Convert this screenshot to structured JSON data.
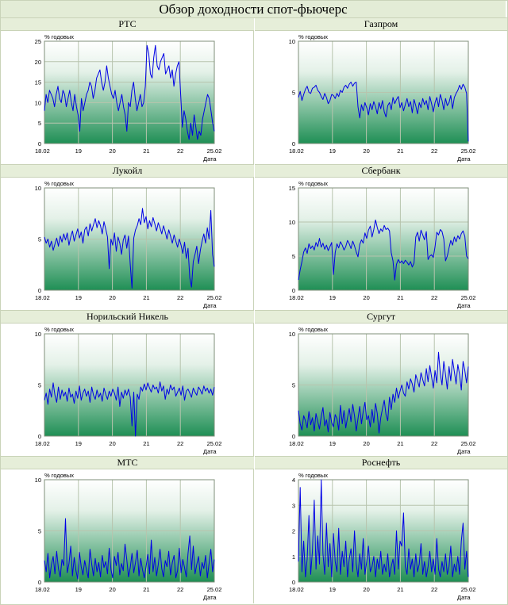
{
  "title": "Обзор доходности спот-фьючерс",
  "colors": {
    "line": "#0000e6",
    "plot_top": "#ffffff",
    "plot_bottom": "#1f8f55",
    "header_bg": "#e6eed9",
    "border": "#c9d3b8",
    "grid": "#b7c4ad"
  },
  "chart_data": [
    {
      "type": "line",
      "title": "РТС",
      "ylabel": "% годовых",
      "xlabel": "Дата",
      "ylim": [
        0,
        25
      ],
      "yticks": [
        "0",
        "5",
        "10",
        "15",
        "20",
        "25"
      ],
      "xticks": [
        "18.02",
        "19",
        "20",
        "21",
        "22",
        "25.02"
      ],
      "grid": true,
      "series": [
        {
          "values": [
            8,
            12,
            10,
            13,
            12,
            11,
            9,
            12,
            14,
            11,
            10,
            13,
            12,
            9,
            11,
            13,
            10,
            8,
            12,
            9,
            7,
            3,
            11,
            8,
            10,
            12,
            13,
            15,
            14,
            11,
            13,
            16,
            17,
            18,
            15,
            13,
            15,
            19,
            16,
            14,
            12,
            11,
            13,
            10,
            8,
            10,
            12,
            9,
            7,
            3,
            10,
            9,
            13,
            15,
            11,
            8,
            10,
            12,
            9,
            10,
            14,
            24,
            22,
            17,
            16,
            21,
            24,
            19,
            18,
            20,
            21,
            22,
            17,
            18,
            19,
            16,
            18,
            14,
            17,
            19,
            20,
            12,
            4,
            8,
            6,
            3,
            1,
            5,
            2,
            7,
            4,
            1,
            3,
            2,
            6,
            8,
            10,
            12,
            11,
            8,
            5,
            3
          ]
        }
      ]
    },
    {
      "type": "line",
      "title": "Газпром",
      "ylabel": "% годовых",
      "xlabel": "Дата",
      "ylim": [
        0,
        10
      ],
      "yticks": [
        "0",
        "5",
        "10"
      ],
      "xticks": [
        "18.02",
        "19",
        "20",
        "21",
        "22",
        "25.02"
      ],
      "grid": true,
      "series": [
        {
          "values": [
            4.5,
            5.1,
            4.2,
            4.8,
            5.3,
            5.6,
            5.0,
            4.9,
            5.4,
            5.5,
            5.7,
            5.2,
            5.0,
            4.6,
            4.3,
            4.9,
            4.5,
            3.9,
            4.2,
            4.8,
            4.7,
            4.4,
            4.9,
            4.6,
            5.2,
            5.0,
            5.5,
            5.7,
            5.4,
            5.8,
            6.0,
            5.6,
            5.9,
            6.0,
            3.6,
            2.5,
            3.8,
            3.2,
            4.0,
            3.5,
            2.8,
            3.9,
            3.3,
            4.1,
            3.6,
            2.9,
            4.0,
            3.4,
            4.2,
            3.1,
            2.6,
            3.7,
            4.0,
            3.3,
            4.5,
            3.9,
            4.3,
            4.6,
            3.5,
            4.0,
            3.2,
            3.8,
            4.4,
            3.6,
            4.1,
            3.0,
            4.3,
            3.7,
            2.9,
            4.0,
            3.5,
            4.4,
            3.8,
            4.2,
            3.3,
            4.6,
            3.9,
            3.1,
            4.0,
            4.5,
            3.6,
            4.8,
            4.2,
            3.3,
            4.4,
            3.7,
            4.0,
            4.7,
            3.4,
            4.5,
            4.9,
            5.2,
            5.7,
            5.3,
            5.8,
            5.5,
            4.9,
            0.2
          ]
        }
      ]
    },
    {
      "type": "line",
      "title": "Лукойл",
      "ylabel": "% годовых",
      "xlabel": "Дата",
      "ylim": [
        0,
        10
      ],
      "yticks": [
        "0",
        "5",
        "10"
      ],
      "xticks": [
        "18.02",
        "19",
        "20",
        "21",
        "22",
        "25.02"
      ],
      "grid": true,
      "series": [
        {
          "values": [
            5.2,
            4.6,
            5.0,
            4.2,
            4.8,
            3.9,
            4.5,
            5.1,
            4.3,
            5.3,
            4.7,
            5.5,
            4.9,
            5.6,
            4.4,
            5.2,
            5.8,
            4.8,
            5.4,
            6.0,
            5.1,
            5.7,
            4.6,
            5.9,
            6.2,
            5.3,
            6.5,
            5.8,
            6.4,
            7.0,
            6.1,
            6.8,
            6.3,
            5.5,
            6.7,
            6.0,
            5.2,
            2.1,
            5.0,
            4.4,
            5.6,
            3.8,
            5.2,
            4.6,
            3.5,
            4.9,
            5.4,
            4.1,
            5.3,
            2.5,
            0.2,
            5.1,
            5.9,
            6.3,
            7.0,
            6.4,
            8.0,
            6.6,
            7.2,
            6.0,
            6.8,
            6.2,
            7.1,
            6.5,
            5.8,
            6.6,
            6.1,
            5.5,
            6.3,
            5.7,
            5.0,
            5.9,
            5.3,
            4.6,
            5.4,
            4.8,
            4.2,
            5.0,
            4.4,
            3.6,
            4.7,
            3.1,
            4.1,
            1.2,
            0.3,
            2.8,
            3.5,
            4.3,
            2.6,
            3.9,
            4.8,
            5.5,
            4.6,
            6.1,
            5.0,
            7.8,
            3.5,
            2.3
          ]
        }
      ]
    },
    {
      "type": "line",
      "title": "Сбербанк",
      "ylabel": "% годовых",
      "xlabel": "Дата",
      "ylim": [
        0,
        15
      ],
      "yticks": [
        "0",
        "5",
        "10",
        "15"
      ],
      "xticks": [
        "18.02",
        "19",
        "20",
        "21",
        "22",
        "25.02"
      ],
      "grid": true,
      "series": [
        {
          "values": [
            1.5,
            3.0,
            4.2,
            5.6,
            6.2,
            5.4,
            6.8,
            6.1,
            6.5,
            5.9,
            7.0,
            6.4,
            7.6,
            6.3,
            6.9,
            6.0,
            6.6,
            5.8,
            6.4,
            7.0,
            2.3,
            5.5,
            6.8,
            6.2,
            7.1,
            6.6,
            5.9,
            6.4,
            7.3,
            6.8,
            6.1,
            7.2,
            6.5,
            5.6,
            4.9,
            6.7,
            7.4,
            6.9,
            8.4,
            7.6,
            8.8,
            9.4,
            7.8,
            8.9,
            10.3,
            9.2,
            8.3,
            9.0,
            8.6,
            9.5,
            8.9,
            9.1,
            8.7,
            5.5,
            4.3,
            1.5,
            3.8,
            4.5,
            4.0,
            4.3,
            3.9,
            4.4,
            4.1,
            3.7,
            4.2,
            3.4,
            4.0,
            7.8,
            8.5,
            7.2,
            8.8,
            8.1,
            7.4,
            8.6,
            4.5,
            5.0,
            5.2,
            4.8,
            6.4,
            8.5,
            8.1,
            8.9,
            8.6,
            7.5,
            4.3,
            5.0,
            6.2,
            7.3,
            6.6,
            7.8,
            7.1,
            8.0,
            7.5,
            8.3,
            8.7,
            7.9,
            5.0,
            4.6
          ]
        }
      ]
    },
    {
      "type": "line",
      "title": "Норильский Никель",
      "ylabel": "% годовых",
      "xlabel": "Дата",
      "ylim": [
        0,
        10
      ],
      "yticks": [
        "0",
        "5",
        "10"
      ],
      "xticks": [
        "18.02",
        "19",
        "20",
        "21",
        "22",
        "25.02"
      ],
      "grid": true,
      "series": [
        {
          "values": [
            3.5,
            4.2,
            3.1,
            4.6,
            3.8,
            5.2,
            4.0,
            3.3,
            4.8,
            3.6,
            4.5,
            3.9,
            4.3,
            3.4,
            4.7,
            3.8,
            4.1,
            3.2,
            4.4,
            3.7,
            4.9,
            3.5,
            4.2,
            4.6,
            3.9,
            4.4,
            3.3,
            4.8,
            4.0,
            3.6,
            4.5,
            3.8,
            4.2,
            3.4,
            4.7,
            4.1,
            3.6,
            4.4,
            3.9,
            4.6,
            4.2,
            3.5,
            4.8,
            2.9,
            4.3,
            3.7,
            4.5,
            4.0,
            4.6,
            3.8,
            1.0,
            4.3,
            0.0,
            4.1,
            3.6,
            4.8,
            4.4,
            5.1,
            4.5,
            5.2,
            4.7,
            4.3,
            5.0,
            4.6,
            4.8,
            4.2,
            5.3,
            4.4,
            4.9,
            3.6,
            4.6,
            4.1,
            5.0,
            4.5,
            4.8,
            3.9,
            4.3,
            4.7,
            4.0,
            4.9,
            3.5,
            4.4,
            4.6,
            4.2,
            3.8,
            4.7,
            4.3,
            4.0,
            4.8,
            4.5,
            4.1,
            4.9,
            4.4,
            4.7,
            4.2,
            4.6,
            4.0,
            4.8
          ]
        }
      ]
    },
    {
      "type": "line",
      "title": "Сургут",
      "ylabel": "% годовых",
      "xlabel": "Дата",
      "ylim": [
        0,
        10
      ],
      "yticks": [
        "0",
        "5",
        "10"
      ],
      "xticks": [
        "18.02",
        "19",
        "20",
        "21",
        "22",
        "25.02"
      ],
      "grid": true,
      "series": [
        {
          "values": [
            2.5,
            1.2,
            0.6,
            2.0,
            1.5,
            0.8,
            2.4,
            1.1,
            1.8,
            0.5,
            2.2,
            1.4,
            0.7,
            1.9,
            2.8,
            1.0,
            1.6,
            0.4,
            2.3,
            1.3,
            0.9,
            2.1,
            1.7,
            0.6,
            3.0,
            1.2,
            2.5,
            0.8,
            1.8,
            2.7,
            1.4,
            3.1,
            2.0,
            0.5,
            1.7,
            2.9,
            1.2,
            2.4,
            3.3,
            1.6,
            2.0,
            0.9,
            2.6,
            1.3,
            3.2,
            2.2,
            0.3,
            1.8,
            2.7,
            3.5,
            2.1,
            1.5,
            3.8,
            2.6,
            4.1,
            3.3,
            4.7,
            3.7,
            4.4,
            5.0,
            4.2,
            3.9,
            5.3,
            4.6,
            5.6,
            5.1,
            4.3,
            6.0,
            5.4,
            4.8,
            6.2,
            5.5,
            4.9,
            6.6,
            5.3,
            6.9,
            5.8,
            4.7,
            6.4,
            5.2,
            8.2,
            6.1,
            5.0,
            7.3,
            6.0,
            4.6,
            6.8,
            5.4,
            7.5,
            6.3,
            5.1,
            7.0,
            6.0,
            4.5,
            7.3,
            6.4,
            5.2,
            6.8
          ]
        }
      ]
    },
    {
      "type": "line",
      "title": "МТС",
      "ylabel": "% годовых",
      "xlabel": "Дата",
      "ylim": [
        0,
        10
      ],
      "yticks": [
        "0",
        "5",
        "10"
      ],
      "xticks": [
        "18.02",
        "19",
        "20",
        "21",
        "22",
        "25.02"
      ],
      "grid": true,
      "series": [
        {
          "values": [
            2.1,
            1.0,
            2.8,
            0.4,
            1.7,
            2.5,
            0.8,
            3.0,
            1.3,
            0.5,
            2.2,
            1.6,
            6.2,
            0.9,
            1.8,
            3.5,
            0.6,
            2.4,
            1.1,
            0.3,
            2.9,
            1.5,
            0.7,
            2.1,
            1.2,
            0.4,
            3.2,
            1.7,
            0.6,
            2.3,
            1.0,
            1.9,
            0.5,
            2.6,
            1.4,
            2.0,
            0.8,
            3.3,
            1.2,
            0.4,
            2.5,
            1.6,
            2.9,
            0.7,
            1.8,
            1.1,
            3.7,
            2.2,
            0.5,
            1.4,
            2.8,
            0.9,
            1.9,
            3.1,
            0.6,
            2.3,
            1.2,
            0.4,
            1.5,
            2.7,
            0.8,
            4.1,
            1.0,
            2.4,
            0.6,
            1.7,
            3.2,
            1.3,
            0.5,
            2.1,
            1.5,
            3.0,
            0.7,
            1.9,
            2.6,
            0.4,
            1.1,
            3.3,
            0.9,
            2.2,
            1.4,
            0.5,
            2.8,
            4.5,
            1.2,
            3.5,
            0.8,
            1.7,
            2.5,
            0.6,
            1.9,
            1.3,
            2.6,
            0.4,
            1.8,
            3.2,
            1.0,
            2.2
          ]
        }
      ]
    },
    {
      "type": "line",
      "title": "Роснефть",
      "ylabel": "% годовых",
      "xlabel": "Дата",
      "ylim": [
        0,
        4
      ],
      "yticks": [
        "0",
        "1",
        "2",
        "3",
        "4"
      ],
      "xticks": [
        "18.02",
        "19",
        "20",
        "21",
        "22",
        "25.02"
      ],
      "grid": true,
      "series": [
        {
          "values": [
            0.8,
            3.7,
            0.4,
            1.6,
            0.2,
            0.9,
            2.6,
            0.3,
            1.2,
            3.2,
            0.5,
            1.8,
            0.7,
            4.0,
            1.1,
            0.3,
            2.3,
            0.6,
            1.5,
            0.2,
            1.9,
            0.8,
            0.4,
            2.1,
            0.3,
            1.2,
            0.6,
            1.6,
            0.2,
            0.9,
            1.3,
            0.4,
            2.0,
            0.7,
            0.2,
            1.1,
            0.5,
            1.7,
            0.3,
            0.8,
            1.4,
            0.4,
            0.6,
            1.0,
            0.2,
            0.9,
            0.5,
            1.2,
            0.3,
            0.7,
            0.4,
            1.1,
            0.2,
            0.6,
            0.9,
            0.3,
            2.0,
            0.5,
            1.6,
            1.4,
            2.7,
            0.6,
            0.3,
            1.3,
            0.5,
            0.9,
            0.2,
            1.1,
            0.4,
            0.7,
            1.5,
            0.3,
            0.8,
            0.2,
            0.6,
            1.2,
            0.4,
            0.9,
            0.3,
            1.7,
            0.5,
            0.2,
            0.8,
            0.4,
            1.1,
            0.3,
            0.6,
            1.4,
            0.2,
            0.7,
            0.4,
            1.0,
            0.3,
            1.6,
            2.3,
            0.5,
            1.2,
            0.2
          ]
        }
      ]
    }
  ]
}
